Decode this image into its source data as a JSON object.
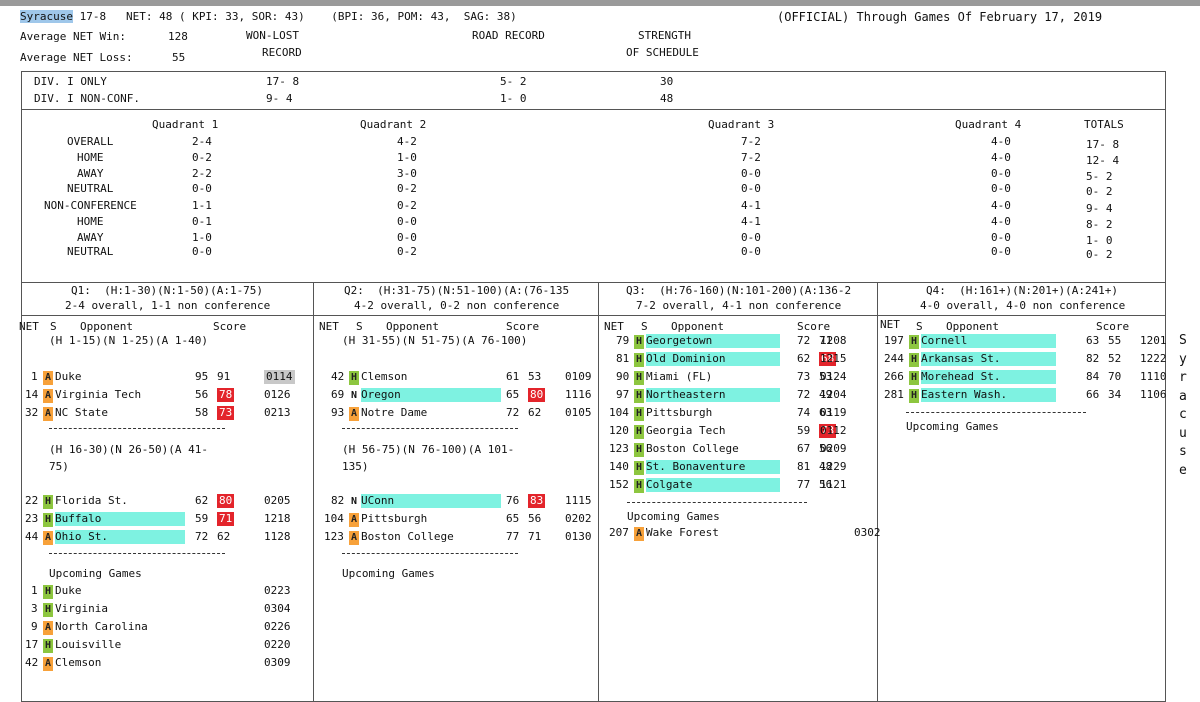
{
  "header": {
    "team": "Syracuse",
    "line1_rest": " 17-8   NET: 48 ( KPI: 33, SOR: 43)    (BPI: 36, POM: 43,  SAG: 38)",
    "official": "(OFFICIAL) Through Games Of February 17, 2019",
    "avg_win_label": "Average NET Win:",
    "avg_win_value": "128",
    "avg_loss_label": "Average NET Loss:",
    "avg_loss_value": "55",
    "col_wl": "WON-LOST",
    "col_wl2": "RECORD",
    "col_road": "ROAD RECORD",
    "col_sos": "STRENGTH",
    "col_sos2": "OF SCHEDULE"
  },
  "div_rows": [
    {
      "label": "DIV. I ONLY",
      "wl": "17- 8",
      "road": "5- 2",
      "sos": "30"
    },
    {
      "label": "DIV. I NON-CONF.",
      "wl": "9- 4",
      "road": "1- 0",
      "sos": "48"
    }
  ],
  "quadrant_headers": [
    "Quadrant 1",
    "Quadrant 2",
    "Quadrant 3",
    "Quadrant 4",
    "TOTALS"
  ],
  "quad_rows": [
    {
      "label": "OVERALL",
      "q": [
        "2-4",
        "4-2",
        "7-2",
        "4-0"
      ],
      "total": "17- 8"
    },
    {
      "label": "HOME",
      "q": [
        "0-2",
        "1-0",
        "7-2",
        "4-0"
      ],
      "total": "12- 4"
    },
    {
      "label": "AWAY",
      "q": [
        "2-2",
        "3-0",
        "0-0",
        "0-0"
      ],
      "total": "5- 2"
    },
    {
      "label": "NEUTRAL",
      "q": [
        "0-0",
        "0-2",
        "0-0",
        "0-0"
      ],
      "total": "0- 2"
    },
    {
      "label": "NON-CONFERENCE",
      "q": [
        "1-1",
        "0-2",
        "4-1",
        "4-0"
      ],
      "total": "9- 4"
    },
    {
      "label": "HOME",
      "q": [
        "0-1",
        "0-0",
        "4-1",
        "4-0"
      ],
      "total": "8- 2"
    },
    {
      "label": "AWAY",
      "q": [
        "1-0",
        "0-0",
        "0-0",
        "0-0"
      ],
      "total": "1- 0"
    },
    {
      "label": "NEUTRAL",
      "q": [
        "0-0",
        "0-2",
        "0-0",
        "0-0"
      ],
      "total": "0- 2"
    }
  ],
  "col_headers": {
    "net": "NET",
    "s": "S",
    "opp": "Opponent",
    "score": "Score"
  },
  "panels": [
    {
      "title1": "Q1:  (H:1-30)(N:1-50)(A:1-75)",
      "title2": "2-4 overall, 1-1 non conference",
      "sub1": "(H 1-15)(N 1-25)(A 1-40)",
      "games1": [
        {
          "net": "1",
          "site": "A",
          "opp": "Duke",
          "win": false,
          "s1": "95",
          "s2": "91",
          "s2loss": false,
          "date": "0114",
          "greydate": true
        },
        {
          "net": "14",
          "site": "A",
          "opp": "Virginia Tech",
          "win": false,
          "s1": "56",
          "s2": "78",
          "s2loss": true,
          "date": "0126"
        },
        {
          "net": "32",
          "site": "A",
          "opp": "NC State",
          "win": false,
          "s1": "58",
          "s2": "73",
          "s2loss": true,
          "date": "0213"
        }
      ],
      "sub2a": "(H 16-30)(N 26-50)(A 41-",
      "sub2b": "75)",
      "games2": [
        {
          "net": "22",
          "site": "H",
          "opp": "Florida St.",
          "win": false,
          "s1": "62",
          "s2": "80",
          "s2loss": true,
          "date": "0205"
        },
        {
          "net": "23",
          "site": "H",
          "opp": "Buffalo",
          "win": true,
          "s1": "59",
          "s2": "71",
          "s2loss": true,
          "date": "1218"
        },
        {
          "net": "44",
          "site": "A",
          "opp": "Ohio St.",
          "win": true,
          "s1": "72",
          "s2": "62",
          "s2loss": false,
          "date": "1128"
        }
      ],
      "upcoming_label": "Upcoming Games",
      "upcoming": [
        {
          "net": "1",
          "site": "H",
          "opp": "Duke",
          "date": "0223"
        },
        {
          "net": "3",
          "site": "H",
          "opp": "Virginia",
          "date": "0304"
        },
        {
          "net": "9",
          "site": "A",
          "opp": "North Carolina",
          "date": "0226"
        },
        {
          "net": "17",
          "site": "H",
          "opp": "Louisville",
          "date": "0220"
        },
        {
          "net": "42",
          "site": "A",
          "opp": "Clemson",
          "date": "0309"
        }
      ]
    },
    {
      "title1": "Q2:  (H:31-75)(N:51-100)(A:(76-135",
      "title2": "4-2 overall, 0-2 non conference",
      "sub1": "(H 31-55)(N 51-75)(A 76-100)",
      "games1": [
        {
          "net": "42",
          "site": "H",
          "opp": "Clemson",
          "win": false,
          "s1": "61",
          "s2": "53",
          "s2loss": false,
          "date": "0109"
        },
        {
          "net": "69",
          "site": "N",
          "opp": "Oregon",
          "win": true,
          "s1": "65",
          "s2": "80",
          "s2loss": true,
          "date": "1116"
        },
        {
          "net": "93",
          "site": "A",
          "opp": "Notre Dame",
          "win": false,
          "s1": "72",
          "s2": "62",
          "s2loss": false,
          "date": "0105"
        }
      ],
      "sub2a": "(H 56-75)(N 76-100)(A 101-",
      "sub2b": "135)",
      "games2": [
        {
          "net": "82",
          "site": "N",
          "opp": "UConn",
          "win": true,
          "s1": "76",
          "s2": "83",
          "s2loss": true,
          "date": "1115"
        },
        {
          "net": "104",
          "site": "A",
          "opp": "Pittsburgh",
          "win": false,
          "s1": "65",
          "s2": "56",
          "s2loss": false,
          "date": "0202"
        },
        {
          "net": "123",
          "site": "A",
          "opp": "Boston College",
          "win": false,
          "s1": "77",
          "s2": "71",
          "s2loss": false,
          "date": "0130"
        }
      ],
      "upcoming_label": "Upcoming Games",
      "upcoming": []
    },
    {
      "title1": "Q3:  (H:76-160)(N:101-200)(A:136-2",
      "title2": "7-2 overall, 4-1 non conference",
      "games1": [
        {
          "net": "79",
          "site": "H",
          "opp": "Georgetown",
          "win": true,
          "s1": "72",
          "s2": "71",
          "s2loss": false,
          "date": "1208"
        },
        {
          "net": "81",
          "site": "H",
          "opp": "Old Dominion",
          "win": true,
          "s1": "62",
          "s2": "68",
          "s2loss": true,
          "date": "1215"
        },
        {
          "net": "90",
          "site": "H",
          "opp": "Miami (FL)",
          "win": false,
          "s1": "73",
          "s2": "53",
          "s2loss": false,
          "date": "0124"
        },
        {
          "net": "97",
          "site": "H",
          "opp": "Northeastern",
          "win": true,
          "s1": "72",
          "s2": "49",
          "s2loss": false,
          "date": "1204"
        },
        {
          "net": "104",
          "site": "H",
          "opp": "Pittsburgh",
          "win": false,
          "s1": "74",
          "s2": "63",
          "s2loss": false,
          "date": "0119"
        },
        {
          "net": "120",
          "site": "H",
          "opp": "Georgia Tech",
          "win": false,
          "s1": "59",
          "s2": "73",
          "s2loss": true,
          "date": "0112"
        },
        {
          "net": "123",
          "site": "H",
          "opp": "Boston College",
          "win": false,
          "s1": "67",
          "s2": "56",
          "s2loss": false,
          "date": "0209"
        },
        {
          "net": "140",
          "site": "H",
          "opp": "St. Bonaventure",
          "win": true,
          "s1": "81",
          "s2": "48",
          "s2loss": false,
          "date": "1229"
        },
        {
          "net": "152",
          "site": "H",
          "opp": "Colgate",
          "win": true,
          "s1": "77",
          "s2": "56",
          "s2loss": false,
          "date": "1121"
        }
      ],
      "upcoming_label": "Upcoming Games",
      "upcoming": [
        {
          "net": "207",
          "site": "A",
          "opp": "Wake Forest",
          "date": "0302"
        }
      ]
    },
    {
      "title1": "Q4:  (H:161+)(N:201+)(A:241+)",
      "title2": "4-0 overall, 4-0 non conference",
      "games1": [
        {
          "net": "197",
          "site": "H",
          "opp": "Cornell",
          "win": true,
          "s1": "63",
          "s2": "55",
          "s2loss": false,
          "date": "1201"
        },
        {
          "net": "244",
          "site": "H",
          "opp": "Arkansas St.",
          "win": true,
          "s1": "82",
          "s2": "52",
          "s2loss": false,
          "date": "1222"
        },
        {
          "net": "266",
          "site": "H",
          "opp": "Morehead St.",
          "win": true,
          "s1": "84",
          "s2": "70",
          "s2loss": false,
          "date": "1110"
        },
        {
          "net": "281",
          "site": "H",
          "opp": "Eastern Wash.",
          "win": true,
          "s1": "66",
          "s2": "34",
          "s2loss": false,
          "date": "1106"
        }
      ],
      "upcoming_label": "Upcoming Games",
      "upcoming": []
    }
  ],
  "side_letters": [
    "S",
    "y",
    "r",
    "a",
    "c",
    "u",
    "s",
    "e"
  ]
}
